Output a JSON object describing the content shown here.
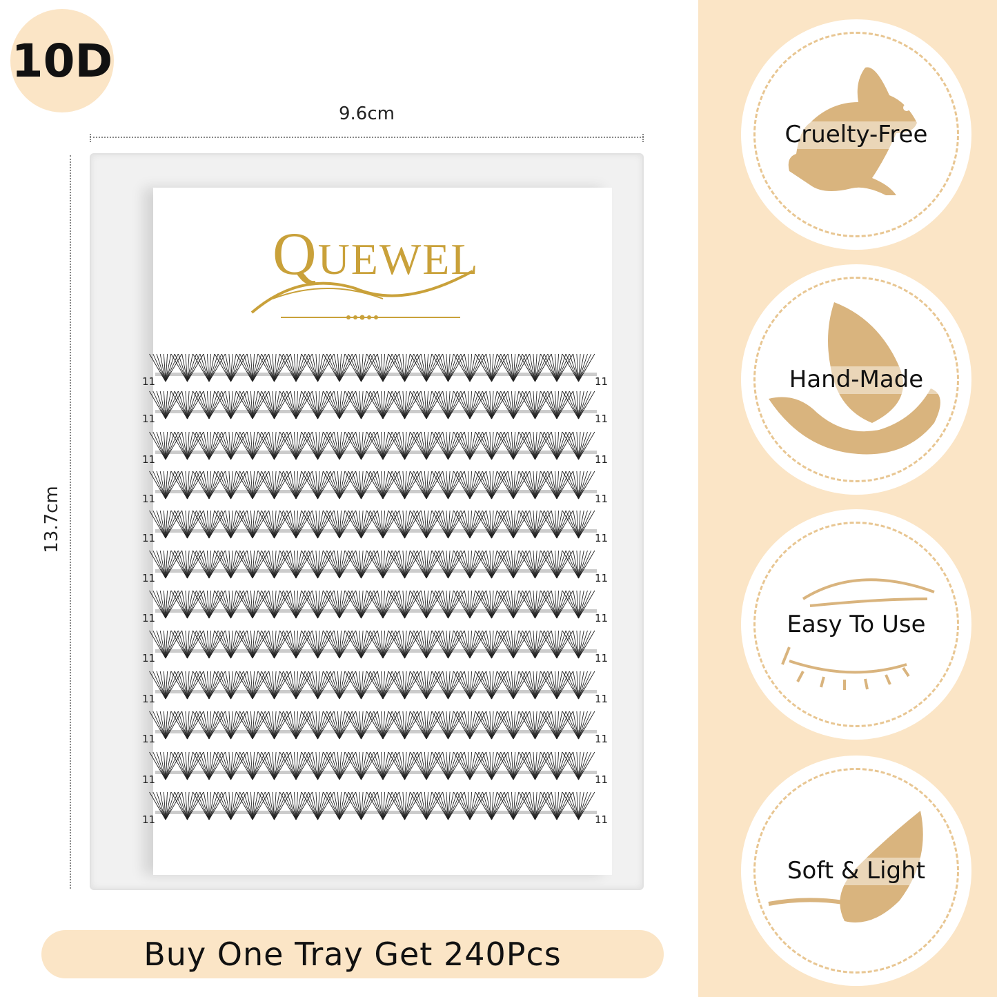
{
  "badge": "10D",
  "dimensions": {
    "width": "9.6cm",
    "height": "13.7cm"
  },
  "brand": "QUEWEL",
  "tray": {
    "rows": 12,
    "clusters_per_row": 20,
    "row_length_labels": [
      "11",
      "11",
      "11",
      "11",
      "11",
      "11",
      "11",
      "11",
      "11",
      "11",
      "11",
      "11"
    ]
  },
  "features": [
    {
      "label": "Cruelty-Free",
      "icon": "rabbit-icon"
    },
    {
      "label": "Hand-Made",
      "icon": "hand-leaf-icon"
    },
    {
      "label": "Easy To Use",
      "icon": "eye-tweezers-icon"
    },
    {
      "label": "Soft & Light",
      "icon": "feather-icon"
    }
  ],
  "banner": "Buy One Tray Get 240Pcs",
  "colors": {
    "accent": "#fbe5c6",
    "icon": "#d9b47e",
    "gold": "#c9a13a"
  }
}
